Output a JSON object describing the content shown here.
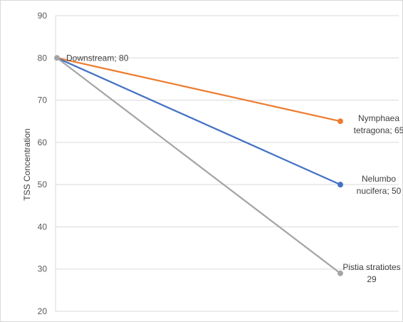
{
  "chart_data": {
    "type": "line",
    "ylabel": "TSS  Concentration",
    "ylim": [
      20,
      90
    ],
    "yticks": [
      "20",
      "30",
      "40",
      "50",
      "60",
      "70",
      "80",
      "90"
    ],
    "grid": true,
    "series": [
      {
        "values": [
          80,
          65
        ],
        "color": "#ed7d31",
        "end_label_lines": [
          "Nymphaea",
          "tetragona; 65"
        ]
      },
      {
        "values": [
          80,
          50
        ],
        "color": "#4472c4",
        "end_label_lines": [
          "Nelumbo",
          "nucifera; 50"
        ]
      },
      {
        "values": [
          80,
          29
        ],
        "color": "#a5a5a5",
        "end_label_lines": [
          "Pistia stratiotes",
          "29"
        ]
      }
    ],
    "start_label": "Downstream; 80"
  }
}
